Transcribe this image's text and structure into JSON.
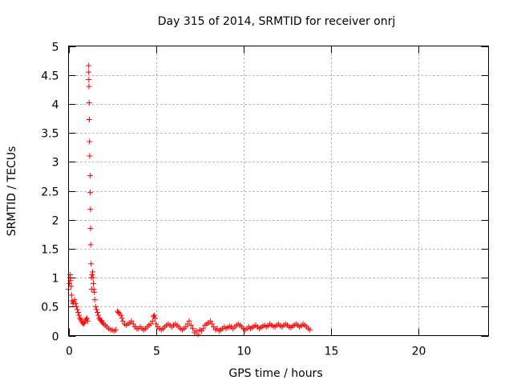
{
  "chart_data": {
    "type": "scatter",
    "title": "Day 315 of 2014, SRMTID for receiver onrj",
    "xlabel": "GPS time / hours",
    "ylabel": "SRMTID / TECUs",
    "xlim": [
      0,
      24
    ],
    "ylim": [
      0,
      5
    ],
    "xticks": [
      0,
      5,
      10,
      15,
      20
    ],
    "yticks": [
      0,
      0.5,
      1,
      1.5,
      2,
      2.5,
      3,
      3.5,
      4,
      4.5,
      5
    ],
    "xtick_labels": [
      "0",
      "5",
      "10",
      "15",
      "20"
    ],
    "ytick_labels": [
      "0",
      "0.5",
      "1",
      "1.5",
      "2",
      "2.5",
      "3",
      "3.5",
      "4",
      "4.5",
      "5"
    ],
    "grid": true,
    "marker": "plus",
    "color": "#ff0000",
    "series": [
      {
        "name": "onrj",
        "points": [
          [
            0.0,
            0.8
          ],
          [
            0.05,
            0.9
          ],
          [
            0.08,
            1.0
          ],
          [
            0.1,
            1.05
          ],
          [
            0.12,
            0.95
          ],
          [
            0.15,
            0.85
          ],
          [
            0.18,
            0.7
          ],
          [
            0.2,
            0.6
          ],
          [
            0.25,
            0.55
          ],
          [
            0.3,
            0.58
          ],
          [
            0.35,
            0.62
          ],
          [
            0.4,
            0.55
          ],
          [
            0.45,
            0.5
          ],
          [
            0.5,
            0.45
          ],
          [
            0.55,
            0.4
          ],
          [
            0.6,
            0.35
          ],
          [
            0.65,
            0.3
          ],
          [
            0.7,
            0.28
          ],
          [
            0.75,
            0.25
          ],
          [
            0.8,
            0.22
          ],
          [
            0.85,
            0.2
          ],
          [
            0.9,
            0.22
          ],
          [
            0.95,
            0.25
          ],
          [
            1.0,
            0.28
          ],
          [
            1.05,
            0.3
          ],
          [
            1.1,
            0.25
          ],
          [
            1.15,
            4.66
          ],
          [
            1.15,
            4.55
          ],
          [
            1.16,
            4.42
          ],
          [
            1.17,
            4.3
          ],
          [
            1.18,
            4.02
          ],
          [
            1.19,
            3.73
          ],
          [
            1.2,
            3.35
          ],
          [
            1.21,
            3.1
          ],
          [
            1.23,
            2.76
          ],
          [
            1.24,
            2.47
          ],
          [
            1.25,
            2.18
          ],
          [
            1.26,
            1.85
          ],
          [
            1.27,
            1.57
          ],
          [
            1.29,
            1.24
          ],
          [
            1.3,
            1.0
          ],
          [
            1.32,
            0.8
          ],
          [
            1.35,
            1.05
          ],
          [
            1.38,
            1.1
          ],
          [
            1.4,
            1.0
          ],
          [
            1.42,
            0.9
          ],
          [
            1.45,
            0.8
          ],
          [
            1.48,
            0.75
          ],
          [
            1.5,
            0.62
          ],
          [
            1.55,
            0.5
          ],
          [
            1.6,
            0.45
          ],
          [
            1.65,
            0.4
          ],
          [
            1.7,
            0.35
          ],
          [
            1.75,
            0.3
          ],
          [
            1.8,
            0.28
          ],
          [
            1.85,
            0.26
          ],
          [
            1.9,
            0.25
          ],
          [
            1.95,
            0.22
          ],
          [
            2.0,
            0.2
          ],
          [
            2.1,
            0.18
          ],
          [
            2.2,
            0.15
          ],
          [
            2.3,
            0.12
          ],
          [
            2.4,
            0.1
          ],
          [
            2.5,
            0.1
          ],
          [
            2.6,
            0.08
          ],
          [
            2.7,
            0.1
          ],
          [
            2.8,
            0.42
          ],
          [
            2.85,
            0.4
          ],
          [
            2.9,
            0.38
          ],
          [
            3.0,
            0.35
          ],
          [
            3.05,
            0.3
          ],
          [
            3.1,
            0.25
          ],
          [
            3.2,
            0.2
          ],
          [
            3.3,
            0.18
          ],
          [
            3.4,
            0.2
          ],
          [
            3.5,
            0.22
          ],
          [
            3.6,
            0.25
          ],
          [
            3.7,
            0.2
          ],
          [
            3.8,
            0.15
          ],
          [
            3.9,
            0.12
          ],
          [
            4.0,
            0.12
          ],
          [
            4.1,
            0.15
          ],
          [
            4.2,
            0.12
          ],
          [
            4.3,
            0.1
          ],
          [
            4.4,
            0.12
          ],
          [
            4.5,
            0.15
          ],
          [
            4.6,
            0.18
          ],
          [
            4.7,
            0.2
          ],
          [
            4.8,
            0.25
          ],
          [
            4.85,
            0.33
          ],
          [
            4.9,
            0.35
          ],
          [
            4.95,
            0.3
          ],
          [
            5.0,
            0.2
          ],
          [
            5.1,
            0.15
          ],
          [
            5.2,
            0.12
          ],
          [
            5.3,
            0.1
          ],
          [
            5.4,
            0.12
          ],
          [
            5.5,
            0.15
          ],
          [
            5.6,
            0.18
          ],
          [
            5.7,
            0.2
          ],
          [
            5.8,
            0.18
          ],
          [
            5.9,
            0.15
          ],
          [
            6.0,
            0.18
          ],
          [
            6.1,
            0.2
          ],
          [
            6.2,
            0.18
          ],
          [
            6.3,
            0.15
          ],
          [
            6.4,
            0.12
          ],
          [
            6.5,
            0.1
          ],
          [
            6.6,
            0.12
          ],
          [
            6.7,
            0.15
          ],
          [
            6.8,
            0.2
          ],
          [
            6.9,
            0.25
          ],
          [
            7.0,
            0.18
          ],
          [
            7.1,
            0.12
          ],
          [
            7.2,
            0.05
          ],
          [
            7.3,
            0.08
          ],
          [
            7.4,
            0.02
          ],
          [
            7.5,
            0.1
          ],
          [
            7.6,
            0.08
          ],
          [
            7.7,
            0.12
          ],
          [
            7.8,
            0.18
          ],
          [
            7.9,
            0.2
          ],
          [
            8.0,
            0.22
          ],
          [
            8.1,
            0.25
          ],
          [
            8.2,
            0.2
          ],
          [
            8.3,
            0.15
          ],
          [
            8.4,
            0.1
          ],
          [
            8.5,
            0.12
          ],
          [
            8.6,
            0.08
          ],
          [
            8.7,
            0.1
          ],
          [
            8.8,
            0.12
          ],
          [
            8.9,
            0.15
          ],
          [
            9.0,
            0.12
          ],
          [
            9.1,
            0.14
          ],
          [
            9.2,
            0.16
          ],
          [
            9.3,
            0.15
          ],
          [
            9.4,
            0.12
          ],
          [
            9.5,
            0.15
          ],
          [
            9.6,
            0.18
          ],
          [
            9.7,
            0.2
          ],
          [
            9.8,
            0.18
          ],
          [
            9.9,
            0.15
          ],
          [
            10.0,
            0.12
          ],
          [
            10.1,
            0.1
          ],
          [
            10.2,
            0.12
          ],
          [
            10.3,
            0.15
          ],
          [
            10.4,
            0.12
          ],
          [
            10.5,
            0.14
          ],
          [
            10.6,
            0.16
          ],
          [
            10.7,
            0.18
          ],
          [
            10.8,
            0.15
          ],
          [
            10.9,
            0.12
          ],
          [
            11.0,
            0.14
          ],
          [
            11.1,
            0.16
          ],
          [
            11.2,
            0.18
          ],
          [
            11.3,
            0.15
          ],
          [
            11.4,
            0.17
          ],
          [
            11.5,
            0.2
          ],
          [
            11.6,
            0.18
          ],
          [
            11.7,
            0.16
          ],
          [
            11.8,
            0.15
          ],
          [
            11.9,
            0.18
          ],
          [
            12.0,
            0.2
          ],
          [
            12.1,
            0.17
          ],
          [
            12.2,
            0.15
          ],
          [
            12.3,
            0.18
          ],
          [
            12.4,
            0.2
          ],
          [
            12.5,
            0.18
          ],
          [
            12.6,
            0.15
          ],
          [
            12.7,
            0.14
          ],
          [
            12.8,
            0.16
          ],
          [
            12.9,
            0.18
          ],
          [
            13.0,
            0.2
          ],
          [
            13.1,
            0.18
          ],
          [
            13.2,
            0.15
          ],
          [
            13.3,
            0.17
          ],
          [
            13.4,
            0.2
          ],
          [
            13.5,
            0.18
          ],
          [
            13.6,
            0.15
          ],
          [
            13.7,
            0.12
          ],
          [
            13.8,
            0.1
          ]
        ]
      }
    ]
  }
}
